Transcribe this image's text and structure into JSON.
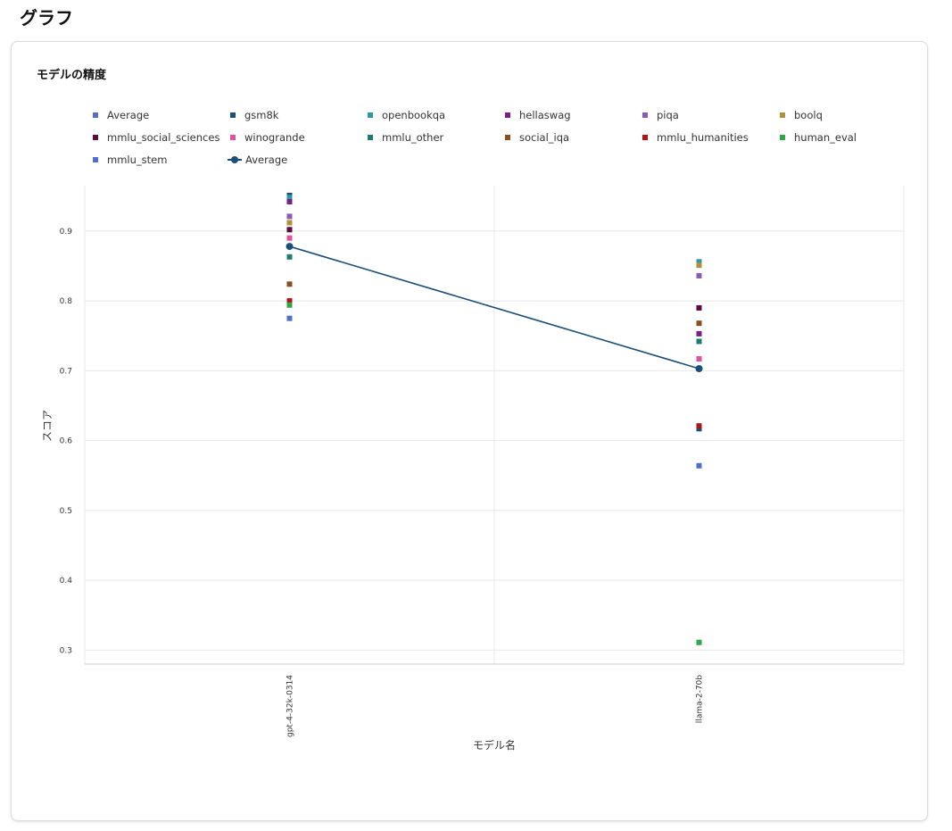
{
  "page": {
    "title": "グラフ"
  },
  "card": {
    "title": "モデルの精度"
  },
  "chart_data": {
    "type": "scatter",
    "title": "モデルの精度",
    "xlabel": "モデル名",
    "ylabel": "スコア",
    "categories": [
      "gpt-4-32k-0314",
      "llama-2-70b"
    ],
    "ylim": [
      0.28,
      0.965
    ],
    "yticks": [
      0.3,
      0.4,
      0.5,
      0.6,
      0.7,
      0.8,
      0.9
    ],
    "grid": true,
    "legend_position": "top",
    "series": [
      {
        "name": "Average",
        "kind": "scatter",
        "color": "#5470c6",
        "values": [
          0.878,
          0.703
        ]
      },
      {
        "name": "gsm8k",
        "kind": "scatter",
        "color": "#1a4f7a",
        "values": [
          0.951,
          0.617
        ]
      },
      {
        "name": "openbookqa",
        "kind": "scatter",
        "color": "#2a9aa8",
        "values": [
          0.948,
          0.856
        ]
      },
      {
        "name": "hellaswag",
        "kind": "scatter",
        "color": "#7a1f8a",
        "values": [
          0.942,
          0.753
        ]
      },
      {
        "name": "piqa",
        "kind": "scatter",
        "color": "#8a5bb0",
        "values": [
          0.921,
          0.836
        ]
      },
      {
        "name": "boolq",
        "kind": "scatter",
        "color": "#b0903a",
        "values": [
          0.912,
          0.851
        ]
      },
      {
        "name": "mmlu_social_sciences",
        "kind": "scatter",
        "color": "#5c0b3a",
        "values": [
          0.902,
          0.79
        ]
      },
      {
        "name": "winogrande",
        "kind": "scatter",
        "color": "#e0529c",
        "values": [
          0.89,
          0.717
        ]
      },
      {
        "name": "mmlu_other",
        "kind": "scatter",
        "color": "#1f7a70",
        "values": [
          0.863,
          0.742
        ]
      },
      {
        "name": "social_iqa",
        "kind": "scatter",
        "color": "#8a4f20",
        "values": [
          0.824,
          0.768
        ]
      },
      {
        "name": "mmlu_humanities",
        "kind": "scatter",
        "color": "#b01515",
        "values": [
          0.8,
          0.621
        ]
      },
      {
        "name": "human_eval",
        "kind": "scatter",
        "color": "#2ea843",
        "values": [
          0.794,
          0.311
        ]
      },
      {
        "name": "mmlu_stem",
        "kind": "scatter",
        "color": "#4f6fd0",
        "values": [
          0.775,
          0.564
        ]
      },
      {
        "name": "Average",
        "kind": "line",
        "color": "#1a4f7a",
        "values": [
          0.878,
          0.703
        ]
      }
    ]
  }
}
